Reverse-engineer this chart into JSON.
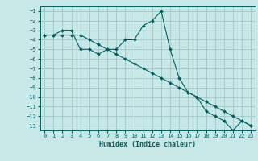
{
  "xlabel": "Humidex (Indice chaleur)",
  "ylabel": "",
  "bg_color": "#c8e8e8",
  "grid_color": "#a0c8c8",
  "line_color": "#006060",
  "xlim": [
    -0.5,
    23.5
  ],
  "ylim": [
    -13.5,
    -0.5
  ],
  "xticks": [
    0,
    1,
    2,
    3,
    4,
    5,
    6,
    7,
    8,
    9,
    10,
    11,
    12,
    13,
    14,
    15,
    16,
    17,
    18,
    19,
    20,
    21,
    22,
    23
  ],
  "yticks": [
    -1,
    -2,
    -3,
    -4,
    -5,
    -6,
    -7,
    -8,
    -9,
    -10,
    -11,
    -12,
    -13
  ],
  "line1_x": [
    0,
    1,
    2,
    3,
    4,
    5,
    6,
    7,
    8,
    9,
    10,
    11,
    12,
    13,
    14,
    15,
    16,
    17,
    18,
    19,
    20,
    21,
    22,
    23
  ],
  "line1_y": [
    -3.5,
    -3.5,
    -3,
    -3,
    -5,
    -5,
    -5.5,
    -5,
    -5,
    -4,
    -4,
    -2.5,
    -2,
    -1,
    -5,
    -8,
    -9.5,
    -10,
    -11.5,
    -12,
    -12.5,
    -13.5,
    -12.5,
    -13
  ],
  "line2_x": [
    0,
    1,
    2,
    3,
    4,
    5,
    6,
    7,
    8,
    9,
    10,
    11,
    12,
    13,
    14,
    15,
    16,
    17,
    18,
    19,
    20,
    21,
    22,
    23
  ],
  "line2_y": [
    -3.5,
    -3.5,
    -3.5,
    -3.5,
    -3.5,
    -4,
    -4.5,
    -5,
    -5.5,
    -6,
    -6.5,
    -7,
    -7.5,
    -8,
    -8.5,
    -9,
    -9.5,
    -10,
    -10.5,
    -11,
    -11.5,
    -12,
    -12.5,
    -13
  ]
}
